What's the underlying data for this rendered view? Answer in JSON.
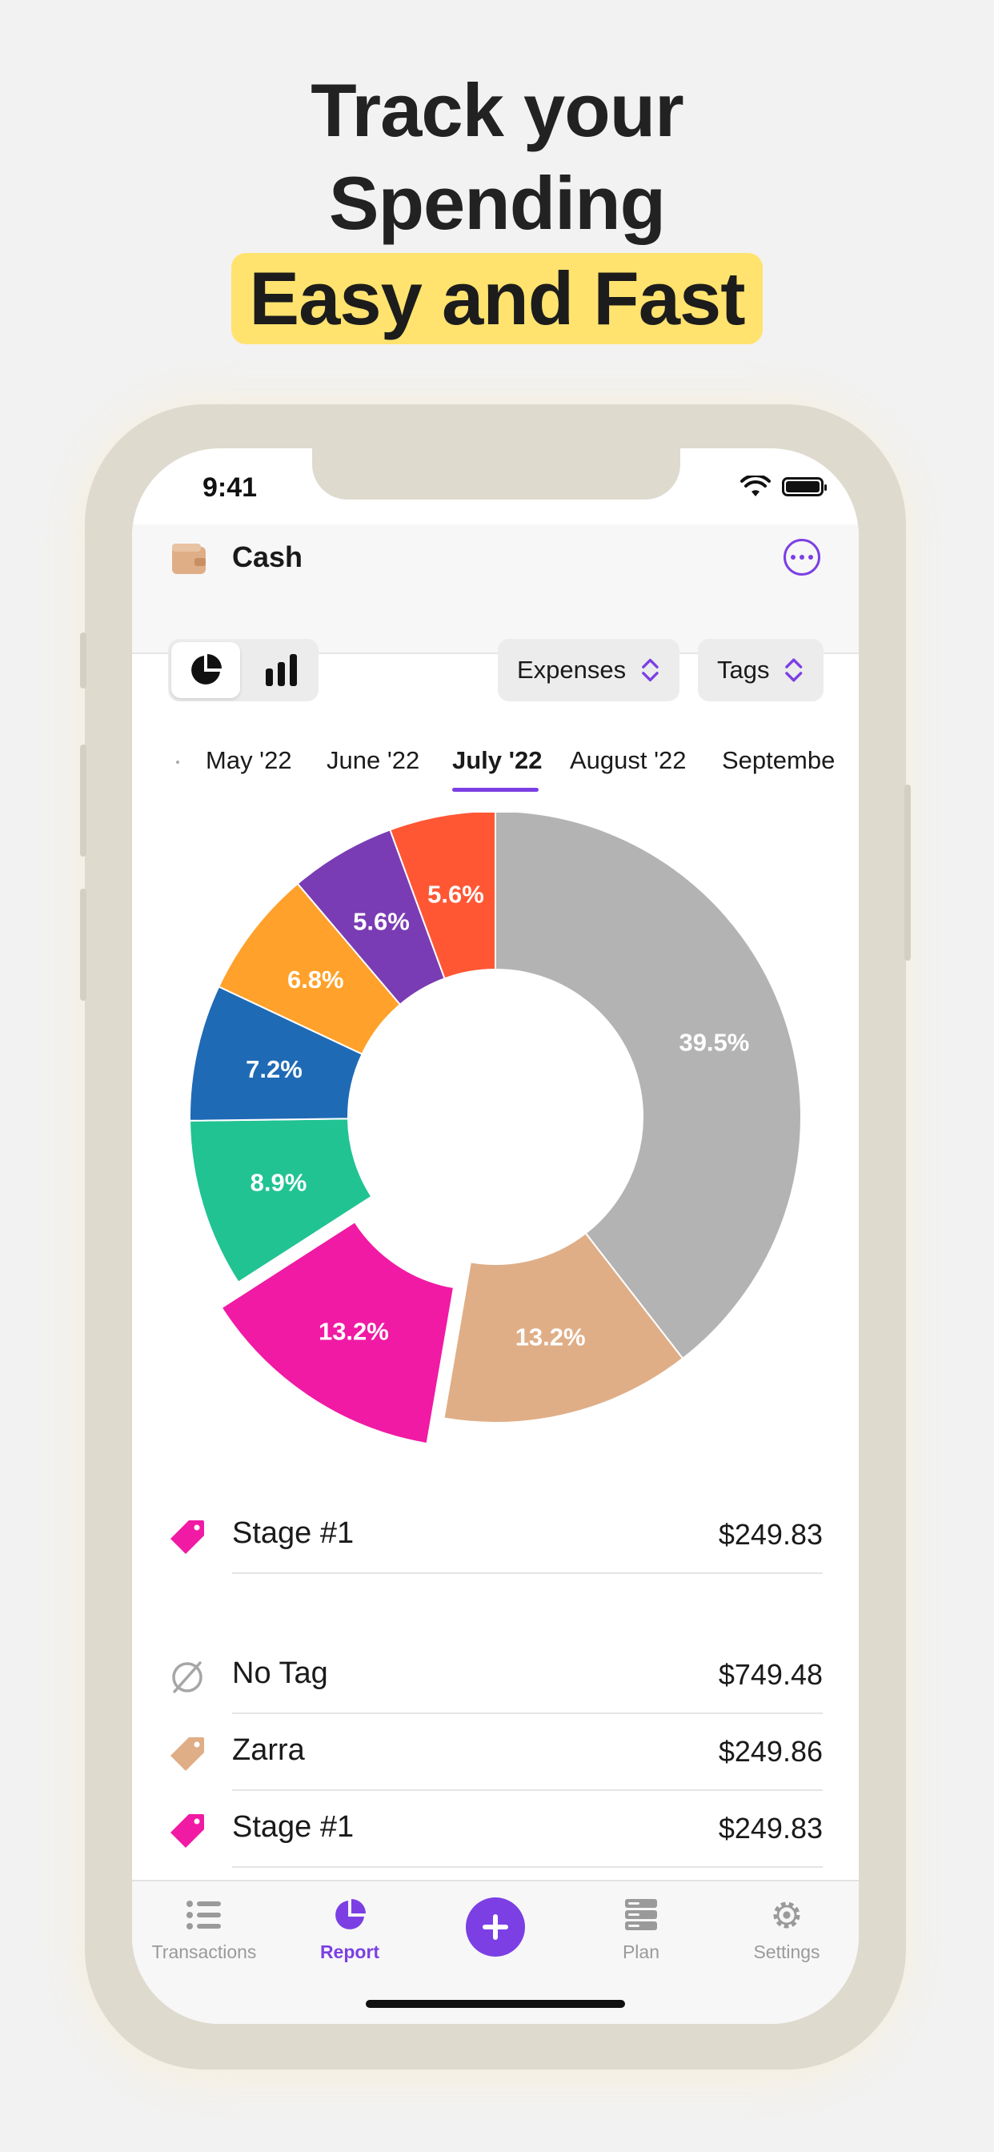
{
  "headline": {
    "line1": "Track your",
    "line2": "Spending",
    "highlight": "Easy and Fast"
  },
  "status_bar": {
    "time": "9:41"
  },
  "navbar": {
    "title": "Cash",
    "more_icon": "ellipsis-circle-icon",
    "wallet_icon": "wallet-icon"
  },
  "controls": {
    "view_modes": [
      "pie-chart-icon",
      "bar-chart-icon"
    ],
    "selected_view": "pie-chart-icon",
    "type_selector": "Expenses",
    "group_selector": "Tags"
  },
  "months": {
    "items": [
      "May '22",
      "June '22",
      "July '22",
      "August '22",
      "Septembe"
    ],
    "selected": "July '22"
  },
  "colors": {
    "accent": "#7b3fe4",
    "gray": "#b3b3b3",
    "tan": "#dfae87",
    "magenta": "#f01aa4",
    "green": "#21c393",
    "blue": "#1f6ab5",
    "orange": "#ffa12a",
    "purple": "#7a3cb4",
    "red": "#ff5734"
  },
  "chart_data": {
    "type": "pie",
    "donut": true,
    "exploded_slice": "Stage #1",
    "slices": [
      {
        "name": "No Tag",
        "value": 39.5,
        "label": "39.5%",
        "color": "#b3b3b3"
      },
      {
        "name": "Zarra",
        "value": 13.2,
        "label": "13.2%",
        "color": "#dfae87"
      },
      {
        "name": "Stage #1",
        "value": 13.2,
        "label": "13.2%",
        "color": "#f01aa4"
      },
      {
        "value": 8.9,
        "label": "8.9%",
        "color": "#21c393"
      },
      {
        "value": 7.2,
        "label": "7.2%",
        "color": "#1f6ab5"
      },
      {
        "value": 6.8,
        "label": "6.8%",
        "color": "#ffa12a"
      },
      {
        "value": 5.6,
        "label": "5.6%",
        "color": "#7a3cb4"
      },
      {
        "value": 5.6,
        "label": "5.6%",
        "color": "#ff5734"
      }
    ]
  },
  "selected_item": {
    "label": "Stage #1",
    "amount": "$249.83",
    "icon": "tag-icon",
    "color": "#f01aa4"
  },
  "list": [
    {
      "label": "No Tag",
      "amount": "$749.48",
      "icon": "no-tag-icon",
      "color": "#a6a6a6"
    },
    {
      "label": "Zarra",
      "amount": "$249.86",
      "icon": "tag-icon",
      "color": "#dfae87"
    },
    {
      "label": "Stage #1",
      "amount": "$249.83",
      "icon": "tag-icon",
      "color": "#f01aa4"
    }
  ],
  "tabbar": {
    "items": [
      {
        "label": "Transactions",
        "icon": "list-icon"
      },
      {
        "label": "Report",
        "icon": "pie-chart-icon"
      },
      {
        "label": "",
        "icon": "plus-icon"
      },
      {
        "label": "Plan",
        "icon": "stack-icon"
      },
      {
        "label": "Settings",
        "icon": "gear-icon"
      }
    ],
    "active": "Report"
  }
}
